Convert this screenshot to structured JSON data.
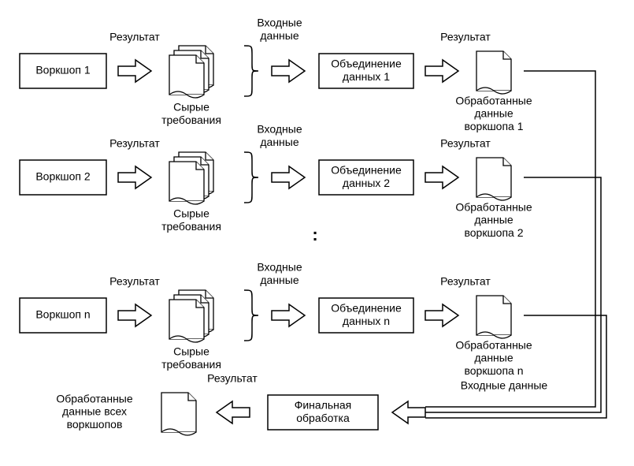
{
  "type": "flowchart",
  "background_color": "#ffffff",
  "stroke_color": "#000000",
  "font_family": "Arial",
  "label_fontsize": 14,
  "rows": [
    {
      "workshop": "Воркшоп 1",
      "result1": "Результат",
      "raw": "Сырые\nтребования",
      "input": "Входные\nданные",
      "merge": "Объединение\nданных 1",
      "result2": "Результат",
      "processed": "Обработанные\nданные\nворкшопа 1"
    },
    {
      "workshop": "Воркшоп 2",
      "result1": "Результат",
      "raw": "Сырые\nтребования",
      "input": "Входные\nданные",
      "merge": "Объединение\nданных 2",
      "result2": "Результат",
      "processed": "Обработанные\nданные\nворкшопа 2"
    },
    {
      "workshop": "Воркшоп n",
      "result1": "Результат",
      "raw": "Сырые\nтребования",
      "input": "Входные\nданные",
      "merge": "Объединение\nданных n",
      "result2": "Результат",
      "processed": "Обработанные\nданные\nворкшопа n"
    }
  ],
  "bottom": {
    "all_processed": "Обработанные\nданные всех\nворкшопов",
    "result": "Результат",
    "final": "Финальная\nобработка",
    "input": "Входные данные"
  }
}
